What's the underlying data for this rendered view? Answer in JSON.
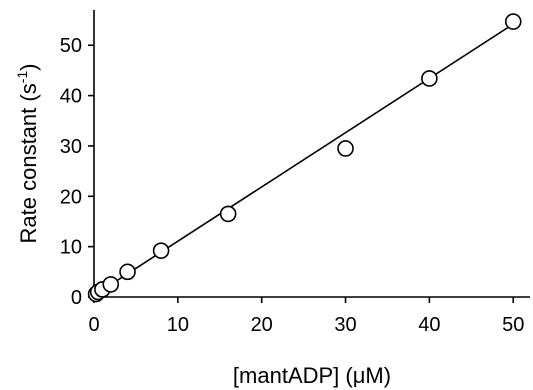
{
  "chart_data": {
    "type": "scatter",
    "xlabel": "[mantADP] (μM)",
    "ylabel_main": "Rate constant (s",
    "ylabel_sup": "-1",
    "ylabel_close": ")",
    "xlim": [
      0,
      52
    ],
    "ylim": [
      0,
      57
    ],
    "xticks": [
      0,
      10,
      20,
      30,
      40,
      50
    ],
    "yticks": [
      0,
      10,
      20,
      30,
      40,
      50
    ],
    "grid": false,
    "series": [
      {
        "marker": "open-circle",
        "points": [
          {
            "x": 0.25,
            "y": 0.6
          },
          {
            "x": 0.5,
            "y": 1.0
          },
          {
            "x": 1,
            "y": 1.5
          },
          {
            "x": 2,
            "y": 2.5
          },
          {
            "x": 4,
            "y": 5.0
          },
          {
            "x": 8,
            "y": 9.2
          },
          {
            "x": 16,
            "y": 16.5
          },
          {
            "x": 30,
            "y": 29.5
          },
          {
            "x": 40,
            "y": 43.4
          },
          {
            "x": 50,
            "y": 54.7
          }
        ]
      }
    ],
    "fit_line": {
      "x": [
        0,
        50
      ],
      "y": [
        0.3,
        54.2
      ]
    }
  }
}
